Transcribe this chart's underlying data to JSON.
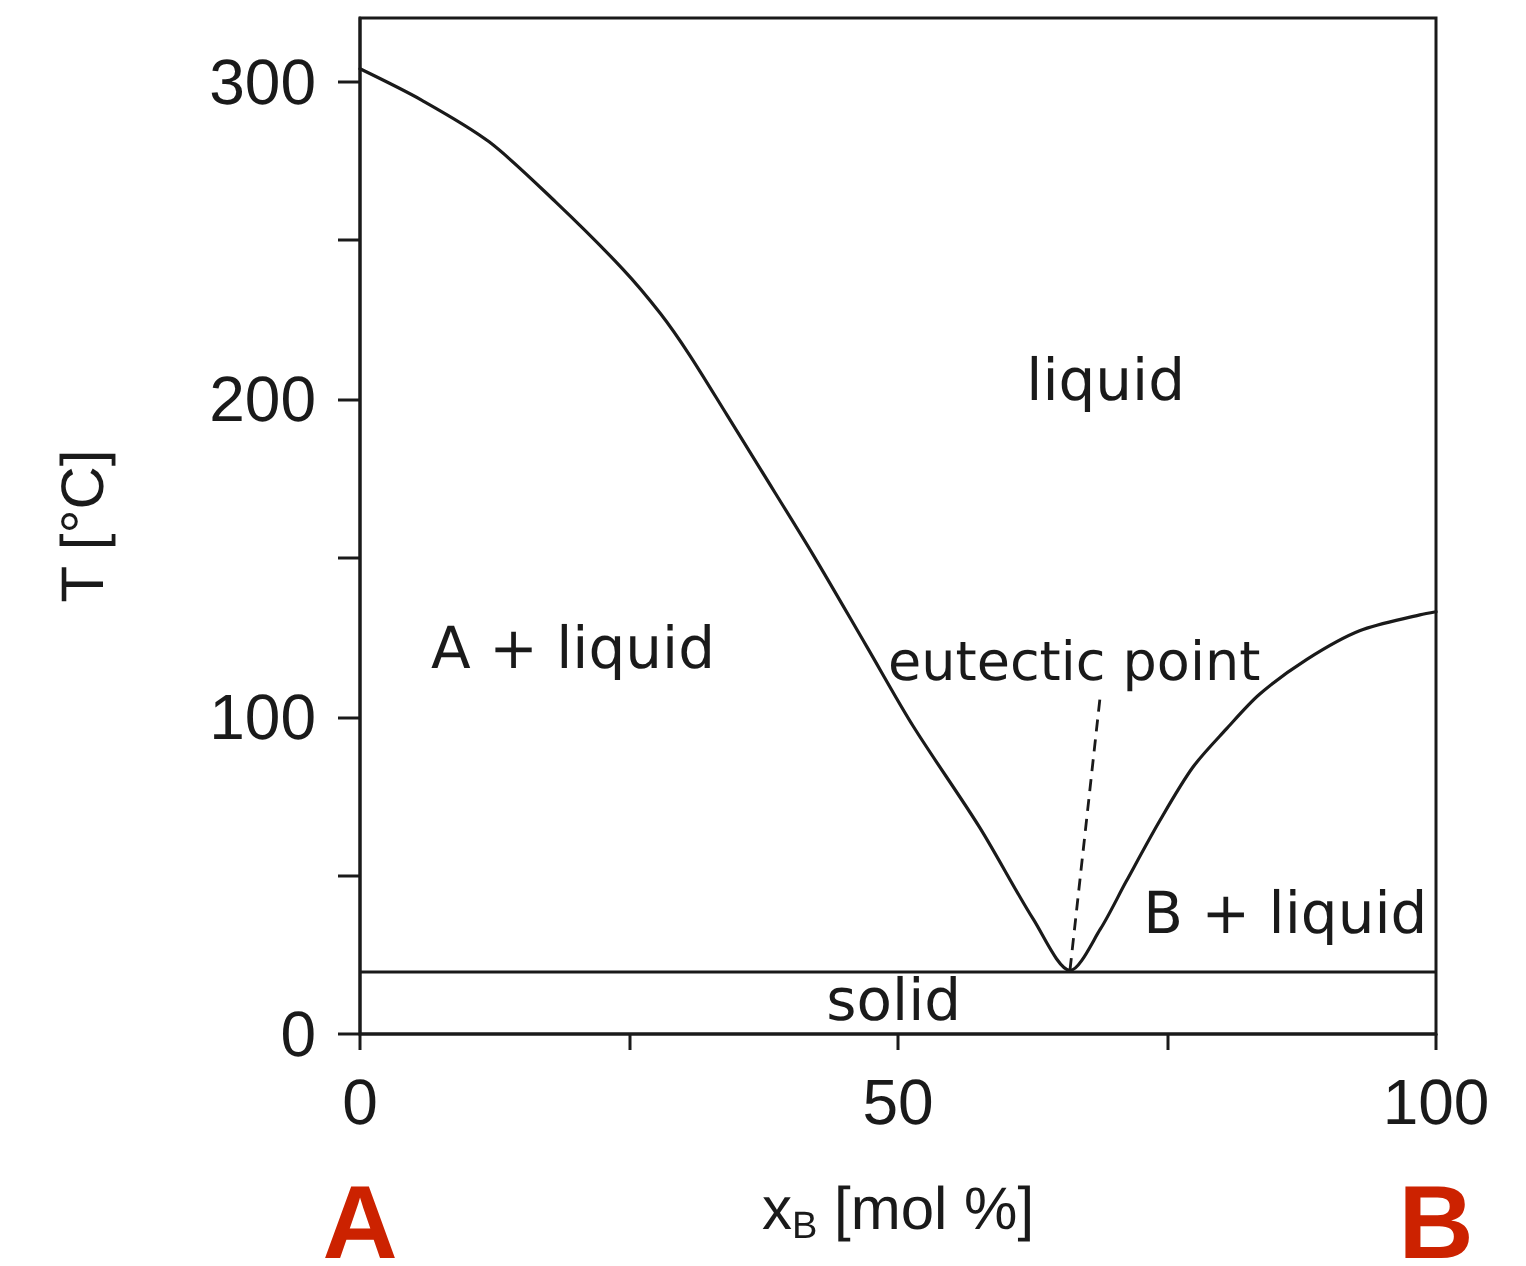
{
  "chart_data": {
    "type": "line",
    "xlabel": "x$_{B}$ [mol %]",
    "ylabel": "T [°C]",
    "x": [
      0,
      5.8,
      12,
      18.2,
      24.4,
      27.9,
      30.6,
      34.1,
      37.2,
      42.1,
      47.1,
      51.4,
      57.6,
      62.6,
      66,
      68.8,
      71.2,
      74.3,
      77.4,
      80.5,
      83.6,
      88,
      92.9,
      98.5,
      100
    ],
    "series": [
      {
        "color": "#1a1a1a",
        "values": [
          304,
          294,
          281,
          262,
          241,
          227,
          214,
          195,
          178,
          151,
          122,
          97,
          65,
          36,
          20,
          33,
          48,
          67,
          84,
          96,
          107,
          118,
          127,
          132,
          133
        ]
      }
    ],
    "xlim": [
      0,
      100
    ],
    "xticks": [
      0,
      {
        "value": 25,
        "label": null
      },
      50,
      {
        "value": 75,
        "label": null
      },
      100
    ],
    "ylim": [
      0,
      320
    ],
    "yticks": [
      0,
      {
        "value": 50,
        "label": null
      },
      100,
      {
        "value": 150,
        "label": null
      },
      200,
      {
        "value": 250,
        "label": null
      },
      300
    ],
    "ref_lines": [
      {
        "axis": "y",
        "value": 20,
        "color": "#1a1a1a",
        "line_style": "solid"
      }
    ],
    "annotations": [
      "A + liquid",
      "liquid",
      {
        "text": "eutectic point",
        "x": 66,
        "y": 20
      },
      "B + liquid",
      "solid",
      "A",
      "B"
    ],
    "marker": "none",
    "line_style": "solid",
    "grid": false
  }
}
